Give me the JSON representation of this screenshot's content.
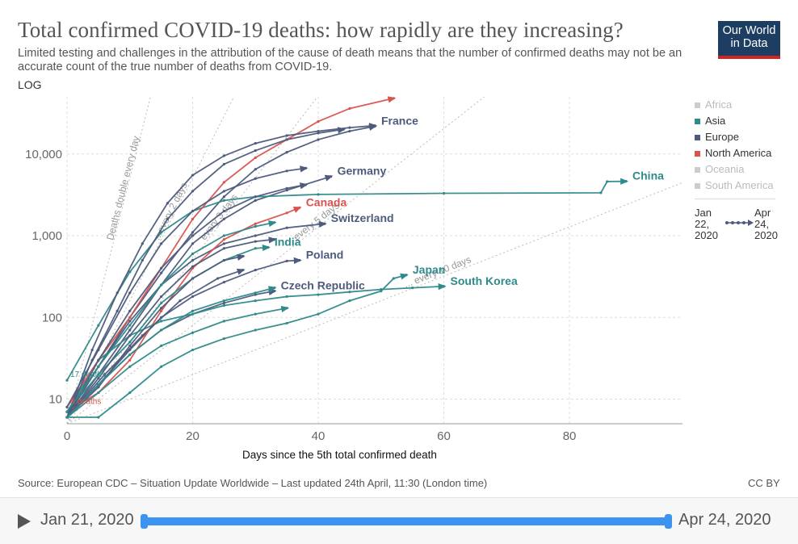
{
  "header": {
    "title": "Total confirmed COVID-19 deaths: how rapidly are they increasing?",
    "subtitle": "Limited testing and challenges in the attribution of the cause of death means that the number of confirmed deaths may not be an accurate count of the true number of deaths from COVID-19.",
    "logo_line1": "Our World",
    "logo_line2": "in Data",
    "scale_toggle": "LOG"
  },
  "legend": {
    "items": [
      {
        "label": "Africa",
        "color": "#cccccc",
        "muted": true
      },
      {
        "label": "Asia",
        "color": "#2f8a8a",
        "muted": false
      },
      {
        "label": "Europe",
        "color": "#4d5b7c",
        "muted": false
      },
      {
        "label": "North America",
        "color": "#d9534f",
        "muted": false
      },
      {
        "label": "Oceania",
        "color": "#cccccc",
        "muted": true
      },
      {
        "label": "South America",
        "color": "#cccccc",
        "muted": true
      }
    ],
    "time_start": "Jan 22, 2020",
    "time_end": "Apr 24, 2020"
  },
  "chart_data": {
    "type": "line",
    "xlabel": "Days since the 5th total confirmed death",
    "ylabel": "",
    "y_scale": "log",
    "xlim": [
      0,
      98
    ],
    "ylim": [
      5,
      50000
    ],
    "x_ticks": [
      0,
      20,
      40,
      60,
      80
    ],
    "y_ticks": [
      10,
      100,
      1000,
      10000
    ],
    "y_tick_labels": [
      "10",
      "100",
      "1,000",
      "10,000"
    ],
    "grid": true,
    "doubling_lines": [
      {
        "label": "Deaths double every day",
        "days": 1
      },
      {
        "label": "...every 2 days",
        "days": 2
      },
      {
        "label": "every 3 days",
        "days": 3
      },
      {
        "label": "every 5 days",
        "days": 5
      },
      {
        "label": "... every 10 days",
        "days": 10
      }
    ],
    "annotations": [
      {
        "label": "17 deaths",
        "x": 0,
        "y": 17
      },
      {
        "label": "8 deaths",
        "x": 0,
        "y": 8
      }
    ],
    "series": [
      {
        "name": "France",
        "color": "#4d5b7c",
        "points": [
          [
            0,
            7
          ],
          [
            5,
            25
          ],
          [
            10,
            100
          ],
          [
            15,
            350
          ],
          [
            20,
            1100
          ],
          [
            25,
            3000
          ],
          [
            30,
            6500
          ],
          [
            35,
            10500
          ],
          [
            40,
            15000
          ],
          [
            45,
            19000
          ],
          [
            49,
            21800
          ]
        ]
      },
      {
        "name": "Germany",
        "color": "#4d5b7c",
        "points": [
          [
            0,
            6
          ],
          [
            5,
            20
          ],
          [
            10,
            70
          ],
          [
            15,
            250
          ],
          [
            20,
            800
          ],
          [
            25,
            1600
          ],
          [
            30,
            2700
          ],
          [
            35,
            3600
          ],
          [
            42,
            5300
          ]
        ]
      },
      {
        "name": "Switzerland",
        "color": "#4d5b7c",
        "points": [
          [
            0,
            6
          ],
          [
            5,
            25
          ],
          [
            10,
            90
          ],
          [
            15,
            250
          ],
          [
            20,
            500
          ],
          [
            25,
            800
          ],
          [
            30,
            1000
          ],
          [
            35,
            1250
          ],
          [
            41,
            1400
          ]
        ]
      },
      {
        "name": "Poland",
        "color": "#4d5b7c",
        "points": [
          [
            0,
            6
          ],
          [
            5,
            15
          ],
          [
            10,
            40
          ],
          [
            15,
            100
          ],
          [
            20,
            180
          ],
          [
            25,
            270
          ],
          [
            30,
            380
          ],
          [
            35,
            490
          ],
          [
            37,
            500
          ]
        ]
      },
      {
        "name": "Czech Republic",
        "color": "#4d5b7c",
        "points": [
          [
            0,
            6
          ],
          [
            5,
            15
          ],
          [
            10,
            35
          ],
          [
            15,
            70
          ],
          [
            20,
            110
          ],
          [
            25,
            150
          ],
          [
            30,
            190
          ],
          [
            33,
            210
          ]
        ]
      },
      {
        "name": "Canada",
        "color": "#d9534f",
        "points": [
          [
            0,
            7
          ],
          [
            5,
            12
          ],
          [
            10,
            30
          ],
          [
            15,
            120
          ],
          [
            20,
            400
          ],
          [
            25,
            900
          ],
          [
            30,
            1400
          ],
          [
            35,
            1900
          ],
          [
            37,
            2200
          ]
        ]
      },
      {
        "name": "India",
        "color": "#2f8a8a",
        "points": [
          [
            0,
            7
          ],
          [
            5,
            20
          ],
          [
            10,
            50
          ],
          [
            15,
            150
          ],
          [
            20,
            300
          ],
          [
            25,
            500
          ],
          [
            30,
            700
          ],
          [
            32,
            720
          ]
        ]
      },
      {
        "name": "China",
        "color": "#2f8a8a",
        "points": [
          [
            0,
            17
          ],
          [
            5,
            80
          ],
          [
            10,
            360
          ],
          [
            15,
            1100
          ],
          [
            20,
            2000
          ],
          [
            25,
            2700
          ],
          [
            30,
            3000
          ],
          [
            40,
            3200
          ],
          [
            60,
            3300
          ],
          [
            85,
            3350
          ],
          [
            86,
            4600
          ],
          [
            89,
            4630
          ]
        ]
      },
      {
        "name": "Japan",
        "color": "#2f8a8a",
        "points": [
          [
            0,
            6
          ],
          [
            5,
            6
          ],
          [
            10,
            12
          ],
          [
            15,
            25
          ],
          [
            20,
            40
          ],
          [
            25,
            55
          ],
          [
            30,
            70
          ],
          [
            35,
            85
          ],
          [
            40,
            110
          ],
          [
            45,
            160
          ],
          [
            50,
            210
          ],
          [
            52,
            300
          ],
          [
            54,
            330
          ]
        ]
      },
      {
        "name": "South Korea",
        "color": "#2f8a8a",
        "points": [
          [
            0,
            7
          ],
          [
            5,
            30
          ],
          [
            10,
            60
          ],
          [
            15,
            90
          ],
          [
            20,
            110
          ],
          [
            25,
            140
          ],
          [
            30,
            160
          ],
          [
            35,
            180
          ],
          [
            40,
            190
          ],
          [
            45,
            205
          ],
          [
            50,
            220
          ],
          [
            55,
            230
          ],
          [
            60,
            240
          ]
        ]
      },
      {
        "name": "",
        "color": "#d9534f",
        "points": [
          [
            0,
            8
          ],
          [
            5,
            30
          ],
          [
            10,
            100
          ],
          [
            15,
            400
          ],
          [
            20,
            1600
          ],
          [
            25,
            4500
          ],
          [
            30,
            9000
          ],
          [
            35,
            15000
          ],
          [
            40,
            25000
          ],
          [
            45,
            36000
          ],
          [
            52,
            48000
          ]
        ]
      },
      {
        "name": "",
        "color": "#4d5b7c",
        "points": [
          [
            0,
            6
          ],
          [
            4,
            40
          ],
          [
            8,
            200
          ],
          [
            12,
            800
          ],
          [
            16,
            2500
          ],
          [
            20,
            5500
          ],
          [
            25,
            9500
          ],
          [
            30,
            13500
          ],
          [
            35,
            16800
          ],
          [
            40,
            19000
          ],
          [
            45,
            21000
          ],
          [
            49,
            22200
          ]
        ]
      },
      {
        "name": "",
        "color": "#4d5b7c",
        "points": [
          [
            0,
            6
          ],
          [
            4,
            30
          ],
          [
            8,
            120
          ],
          [
            12,
            500
          ],
          [
            16,
            1600
          ],
          [
            20,
            3500
          ],
          [
            25,
            7500
          ],
          [
            30,
            11000
          ],
          [
            35,
            15000
          ],
          [
            40,
            18000
          ],
          [
            44,
            20000
          ]
        ]
      },
      {
        "name": "",
        "color": "#4d5b7c",
        "points": [
          [
            0,
            8
          ],
          [
            5,
            40
          ],
          [
            10,
            200
          ],
          [
            15,
            800
          ],
          [
            20,
            2000
          ],
          [
            25,
            3500
          ],
          [
            30,
            5000
          ],
          [
            35,
            6200
          ],
          [
            38,
            6700
          ]
        ]
      },
      {
        "name": "",
        "color": "#4d5b7c",
        "points": [
          [
            0,
            6
          ],
          [
            5,
            30
          ],
          [
            10,
            120
          ],
          [
            15,
            400
          ],
          [
            20,
            1000
          ],
          [
            25,
            2000
          ],
          [
            30,
            3000
          ],
          [
            35,
            3800
          ],
          [
            38,
            4200
          ]
        ]
      },
      {
        "name": "",
        "color": "#4d5b7c",
        "points": [
          [
            0,
            6
          ],
          [
            5,
            18
          ],
          [
            10,
            60
          ],
          [
            15,
            180
          ],
          [
            20,
            420
          ],
          [
            25,
            700
          ],
          [
            30,
            850
          ],
          [
            33,
            900
          ]
        ]
      },
      {
        "name": "",
        "color": "#4d5b7c",
        "points": [
          [
            0,
            6
          ],
          [
            5,
            14
          ],
          [
            10,
            45
          ],
          [
            15,
            130
          ],
          [
            20,
            300
          ],
          [
            25,
            500
          ],
          [
            28,
            560
          ]
        ]
      },
      {
        "name": "",
        "color": "#4d5b7c",
        "points": [
          [
            0,
            6
          ],
          [
            6,
            20
          ],
          [
            12,
            60
          ],
          [
            18,
            160
          ],
          [
            24,
            300
          ],
          [
            28,
            380
          ]
        ]
      },
      {
        "name": "",
        "color": "#2f8a8a",
        "points": [
          [
            0,
            7
          ],
          [
            5,
            25
          ],
          [
            10,
            80
          ],
          [
            15,
            250
          ],
          [
            20,
            600
          ],
          [
            25,
            1000
          ],
          [
            30,
            1300
          ],
          [
            33,
            1450
          ]
        ]
      },
      {
        "name": "",
        "color": "#2f8a8a",
        "points": [
          [
            0,
            6
          ],
          [
            5,
            15
          ],
          [
            10,
            35
          ],
          [
            15,
            70
          ],
          [
            20,
            120
          ],
          [
            25,
            160
          ],
          [
            30,
            200
          ],
          [
            33,
            230
          ]
        ]
      },
      {
        "name": "",
        "color": "#2f8a8a",
        "points": [
          [
            0,
            6
          ],
          [
            5,
            12
          ],
          [
            10,
            25
          ],
          [
            15,
            45
          ],
          [
            20,
            65
          ],
          [
            25,
            90
          ],
          [
            30,
            110
          ],
          [
            35,
            130
          ]
        ]
      }
    ]
  },
  "footer": {
    "source": "Source: European CDC – Situation Update Worldwide – Last updated 24th April, 11:30 (London time)",
    "license": "CC BY",
    "timeline_start": "Jan 21, 2020",
    "timeline_end": "Apr 24, 2020"
  }
}
